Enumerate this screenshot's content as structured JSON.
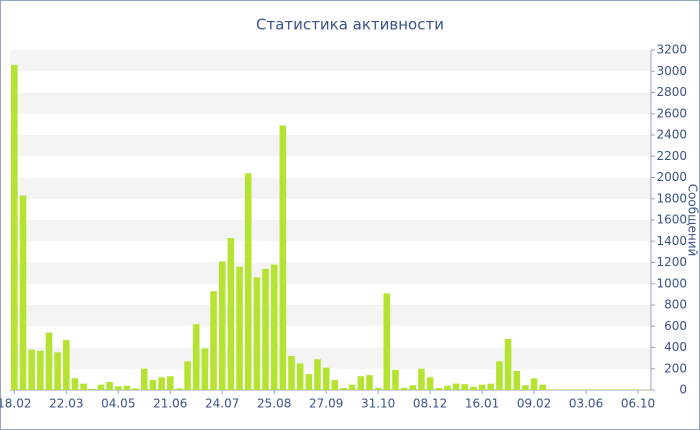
{
  "chart_data": {
    "type": "bar",
    "title": "Статистика активности",
    "y_label": "Сообщений",
    "categories": [
      "18.02",
      null,
      null,
      null,
      null,
      null,
      "22.03",
      null,
      null,
      null,
      null,
      null,
      "04.05",
      null,
      null,
      null,
      null,
      null,
      "21.06",
      null,
      null,
      null,
      null,
      null,
      "24.07",
      null,
      null,
      null,
      null,
      null,
      "25.08",
      null,
      null,
      null,
      null,
      null,
      "27.09",
      null,
      null,
      null,
      null,
      null,
      "31.10",
      null,
      null,
      null,
      null,
      null,
      "08.12",
      null,
      null,
      null,
      null,
      null,
      "16.01",
      null,
      null,
      null,
      null,
      null,
      "09.02",
      null,
      null,
      null,
      null,
      null,
      "03.06",
      null,
      null,
      null,
      null,
      null,
      "06.10",
      null
    ],
    "values": [
      3060,
      1830,
      380,
      370,
      540,
      355,
      470,
      110,
      60,
      10,
      50,
      75,
      35,
      40,
      15,
      200,
      95,
      120,
      130,
      15,
      270,
      620,
      390,
      930,
      1210,
      1430,
      1160,
      2040,
      1060,
      1140,
      1180,
      2490,
      320,
      250,
      150,
      290,
      210,
      95,
      20,
      50,
      130,
      140,
      20,
      910,
      190,
      20,
      45,
      200,
      120,
      20,
      40,
      60,
      55,
      30,
      50,
      60,
      270,
      480,
      180,
      45,
      110,
      50,
      5,
      5,
      5,
      5,
      5,
      5,
      5,
      5,
      5,
      5,
      5,
      5
    ],
    "color": "#b5e332",
    "ylim": [
      0,
      3200
    ],
    "yticks": [
      0,
      200,
      400,
      600,
      800,
      1000,
      1200,
      1400,
      1600,
      1800,
      2000,
      2200,
      2400,
      2600,
      2800,
      3000,
      3200
    ],
    "grid": true
  }
}
